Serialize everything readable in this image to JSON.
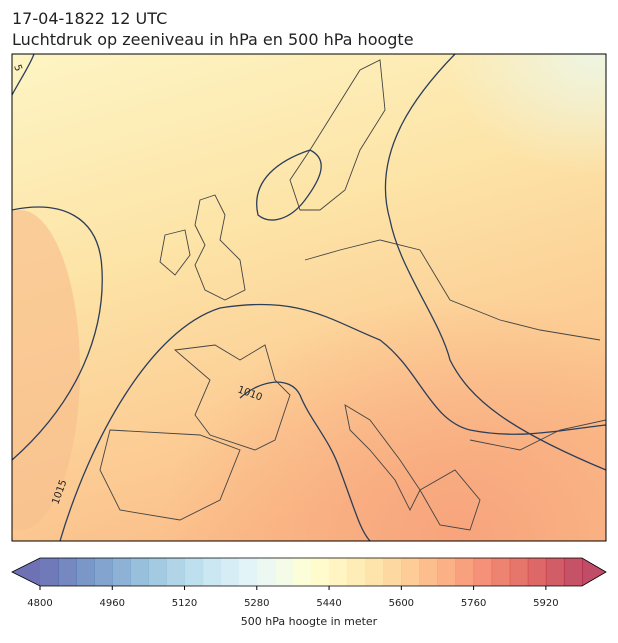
{
  "title": {
    "line1": "17-04-1822 12 UTC",
    "line2": "Luchtdruk op zeeniveau in hPa en 500 hPa hoogte"
  },
  "map": {
    "contour_labels": [
      "5",
      "1010",
      "1015"
    ]
  },
  "colorbar": {
    "label": "500 hPa hoogte in meter",
    "lim": [
      4800,
      6000
    ],
    "ticks": [
      4800,
      4960,
      5120,
      5280,
      5440,
      5600,
      5760,
      5920
    ]
  }
}
